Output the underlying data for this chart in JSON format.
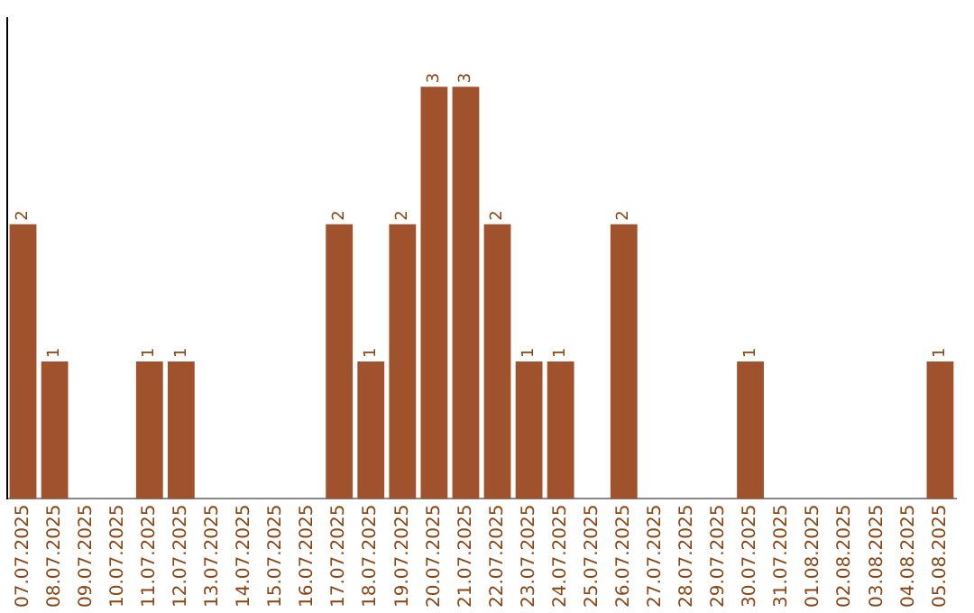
{
  "chart_data": {
    "type": "bar",
    "categories": [
      "07.07.2025",
      "08.07.2025",
      "09.07.2025",
      "10.07.2025",
      "11.07.2025",
      "12.07.2025",
      "13.07.2025",
      "14.07.2025",
      "15.07.2025",
      "16.07.2025",
      "17.07.2025",
      "18.07.2025",
      "19.07.2025",
      "20.07.2025",
      "21.07.2025",
      "22.07.2025",
      "23.07.2025",
      "24.07.2025",
      "25.07.2025",
      "26.07.2025",
      "27.07.2025",
      "28.07.2025",
      "29.07.2025",
      "30.07.2025",
      "31.07.2025",
      "01.08.2025",
      "02.08.2025",
      "03.08.2025",
      "04.08.2025",
      "05.08.2025"
    ],
    "values": [
      2,
      1,
      0,
      0,
      1,
      1,
      0,
      0,
      0,
      0,
      2,
      1,
      2,
      3,
      3,
      2,
      1,
      1,
      0,
      2,
      0,
      0,
      0,
      1,
      0,
      0,
      0,
      0,
      0,
      1
    ],
    "value_labels": [
      "2",
      "1",
      null,
      null,
      "1",
      "1",
      null,
      null,
      null,
      null,
      "2",
      "1",
      "2",
      "3",
      "3",
      "2",
      "1",
      "1",
      null,
      "2",
      null,
      null,
      null,
      "1",
      null,
      null,
      null,
      null,
      null,
      "1"
    ],
    "color": "#a0522d",
    "tick_labels": "x",
    "grid": false,
    "legend": false
  }
}
